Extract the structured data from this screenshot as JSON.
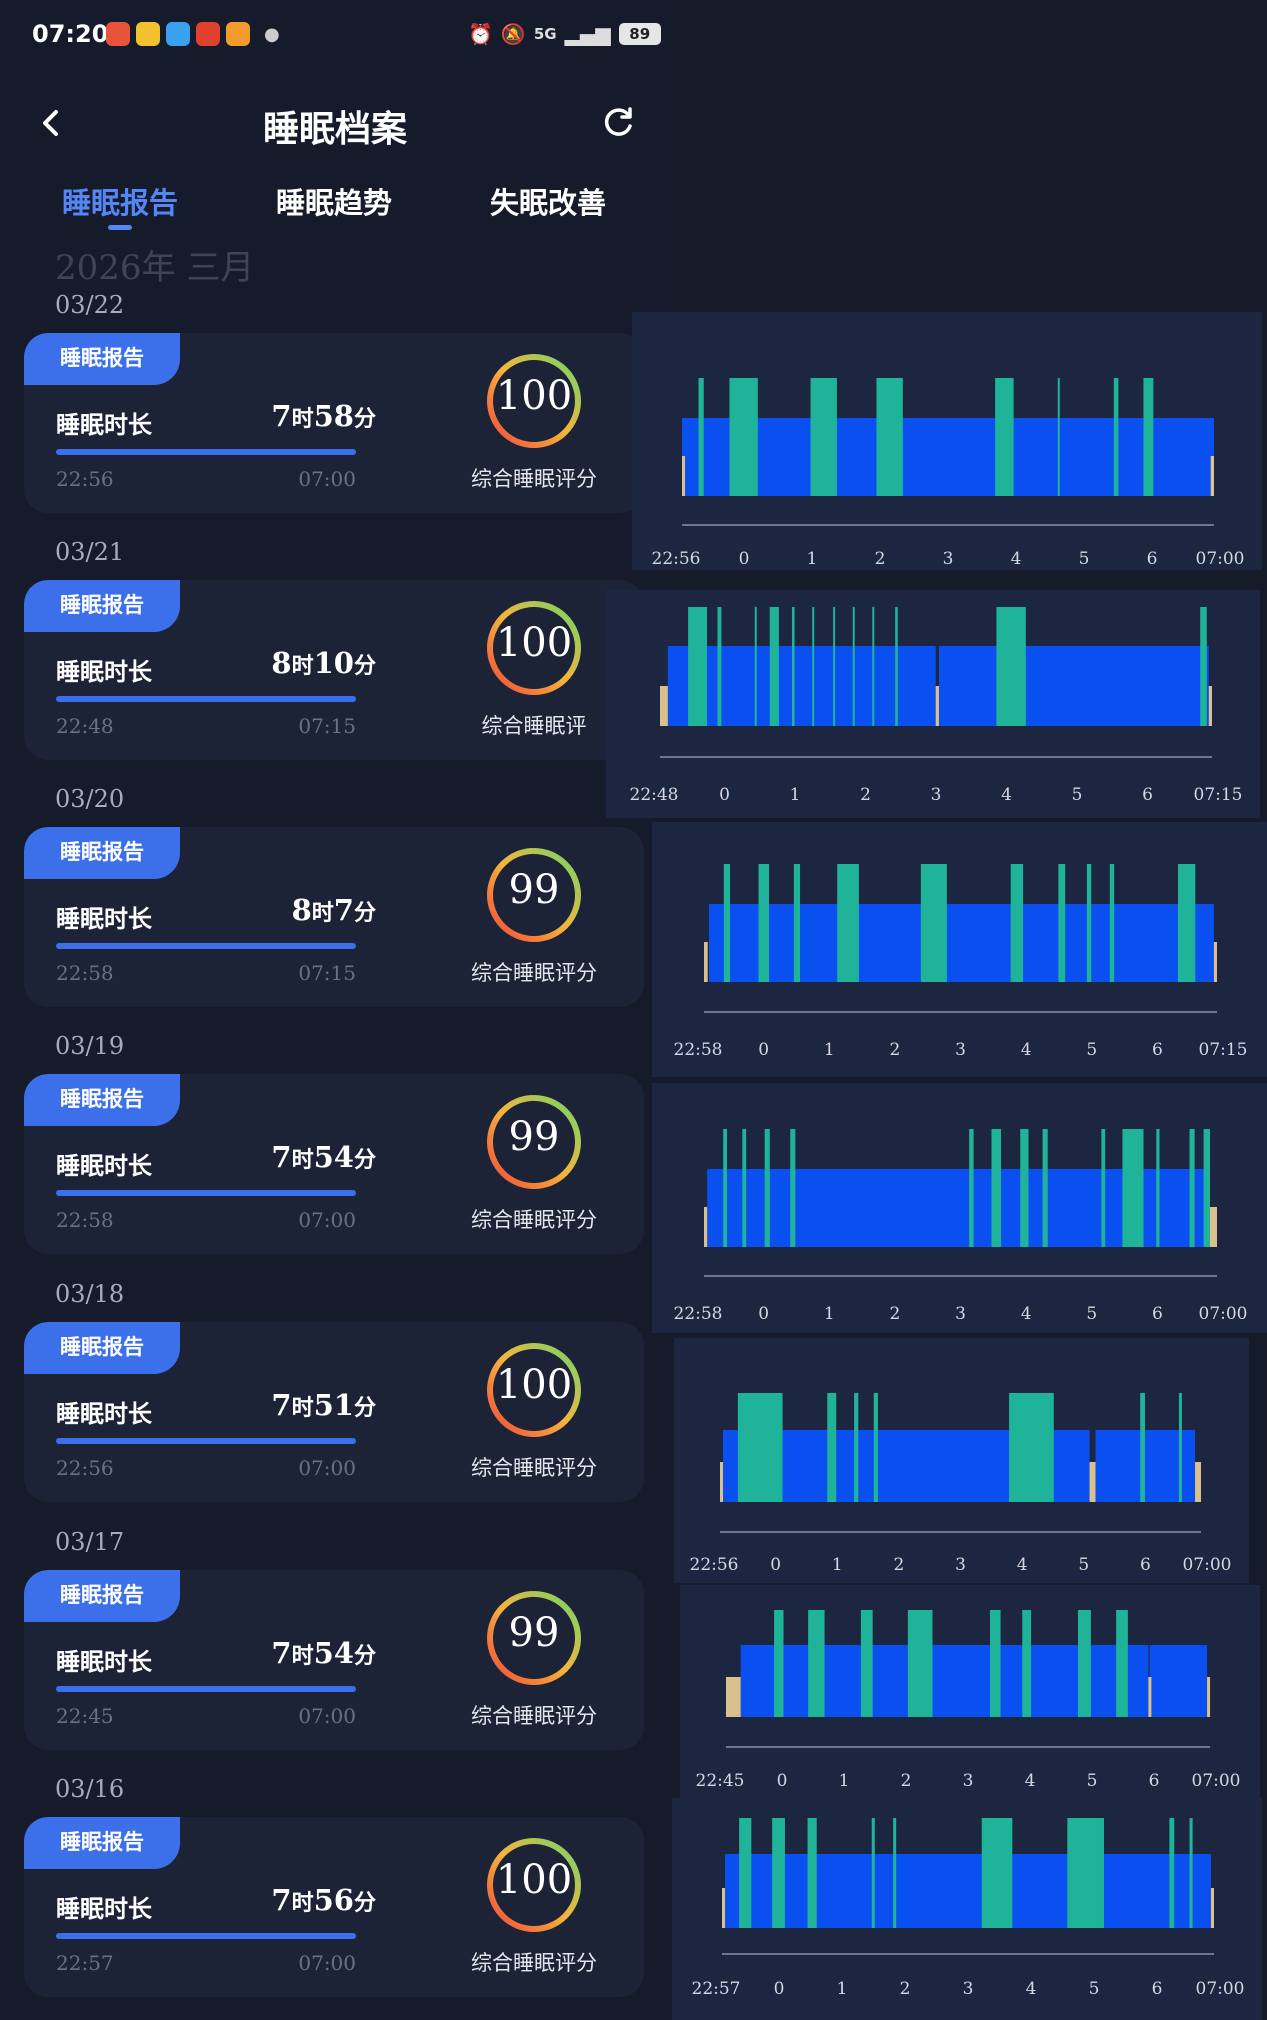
{
  "status_bar": {
    "time": "07:20",
    "signal": "5G",
    "battery": "89",
    "icons": [
      "alarm-icon",
      "mute-icon",
      "signal-icon",
      "battery-icon"
    ]
  },
  "header": {
    "title": "睡眠档案",
    "back_icon": "chevron-left-icon",
    "refresh_icon": "refresh-icon"
  },
  "tabs": [
    {
      "label": "睡眠报告",
      "active": true
    },
    {
      "label": "睡眠趋势",
      "active": false
    },
    {
      "label": "失眠改善",
      "active": false
    }
  ],
  "month_label": "2026年 三月",
  "colors": {
    "accent": "#3c6fea",
    "light_sleep": "#0a50f0",
    "deep_sleep": "#1fb39a",
    "awake": "#d9c08c"
  },
  "records": [
    {
      "date": "03/22",
      "tag": "睡眠报告",
      "duration_label": "睡眠时长",
      "hours": "7",
      "hours_unit": "时",
      "minutes": "58",
      "minutes_unit": "分",
      "start": "22:56",
      "end": "07:00",
      "score": "100",
      "score_label": "综合睡眠评分",
      "axis": [
        "22:56",
        "0",
        "1",
        "2",
        "3",
        "4",
        "5",
        "6",
        "07:00"
      ],
      "chart_data": {
        "type": "bar",
        "x_unit": "hours since sleep start",
        "total_hours": 8.07,
        "light": [
          [
            0.0,
            8.07
          ]
        ],
        "deep": [
          [
            0.25,
            0.33
          ],
          [
            0.72,
            1.15
          ],
          [
            1.95,
            2.35
          ],
          [
            2.95,
            3.35
          ],
          [
            4.75,
            5.03
          ],
          [
            5.7,
            5.73
          ],
          [
            6.55,
            6.62
          ],
          [
            7.0,
            7.15
          ]
        ],
        "awake": [
          [
            0.0,
            0.03
          ],
          [
            8.02,
            8.07
          ]
        ]
      }
    },
    {
      "date": "03/21",
      "tag": "睡眠报告",
      "duration_label": "睡眠时长",
      "hours": "8",
      "hours_unit": "时",
      "minutes": "10",
      "minutes_unit": "分",
      "start": "22:48",
      "end": "07:15",
      "score": "100",
      "score_label": "综合睡眠评",
      "axis": [
        "22:48",
        "0",
        "1",
        "2",
        "3",
        "4",
        "5",
        "6",
        "07:15"
      ],
      "chart_data": {
        "type": "bar",
        "x_unit": "hours since sleep start",
        "total_hours": 8.45,
        "light": [
          [
            0.12,
            4.22
          ],
          [
            4.27,
            8.4
          ]
        ],
        "deep": [
          [
            0.43,
            0.72
          ],
          [
            0.88,
            0.94
          ],
          [
            1.45,
            1.48
          ],
          [
            1.68,
            1.82
          ],
          [
            2.02,
            2.06
          ],
          [
            2.33,
            2.36
          ],
          [
            2.65,
            2.67
          ],
          [
            2.95,
            2.98
          ],
          [
            3.25,
            3.28
          ],
          [
            3.6,
            3.64
          ],
          [
            5.15,
            5.6
          ],
          [
            8.27,
            8.37
          ]
        ],
        "awake": [
          [
            0.0,
            0.12
          ],
          [
            4.22,
            4.27
          ],
          [
            8.4,
            8.45
          ]
        ]
      }
    },
    {
      "date": "03/20",
      "tag": "睡眠报告",
      "duration_label": "睡眠时长",
      "hours": "8",
      "hours_unit": "时",
      "minutes": "7",
      "minutes_unit": "分",
      "start": "22:58",
      "end": "07:15",
      "score": "99",
      "score_label": "综合睡眠评分",
      "axis": [
        "22:58",
        "0",
        "1",
        "2",
        "3",
        "4",
        "5",
        "6",
        "07:15"
      ],
      "chart_data": {
        "type": "bar",
        "x_unit": "hours since sleep start",
        "total_hours": 8.28,
        "light": [
          [
            0.08,
            8.23
          ]
        ],
        "deep": [
          [
            0.32,
            0.42
          ],
          [
            0.88,
            1.05
          ],
          [
            1.45,
            1.55
          ],
          [
            2.15,
            2.5
          ],
          [
            3.5,
            3.92
          ],
          [
            4.95,
            5.15
          ],
          [
            5.72,
            5.83
          ],
          [
            6.18,
            6.25
          ],
          [
            6.55,
            6.62
          ],
          [
            7.65,
            7.93
          ]
        ],
        "awake": [
          [
            0.0,
            0.06
          ],
          [
            8.23,
            8.28
          ]
        ]
      }
    },
    {
      "date": "03/19",
      "tag": "睡眠报告",
      "duration_label": "睡眠时长",
      "hours": "7",
      "hours_unit": "时",
      "minutes": "54",
      "minutes_unit": "分",
      "start": "22:58",
      "end": "07:00",
      "score": "99",
      "score_label": "综合睡眠评分",
      "axis": [
        "22:58",
        "0",
        "1",
        "2",
        "3",
        "4",
        "5",
        "6",
        "07:00"
      ],
      "chart_data": {
        "type": "bar",
        "x_unit": "hours since sleep start",
        "total_hours": 8.03,
        "light": [
          [
            0.05,
            7.92
          ]
        ],
        "deep": [
          [
            0.3,
            0.36
          ],
          [
            0.6,
            0.66
          ],
          [
            0.95,
            1.03
          ],
          [
            1.35,
            1.43
          ],
          [
            4.15,
            4.22
          ],
          [
            4.5,
            4.65
          ],
          [
            4.95,
            5.08
          ],
          [
            5.3,
            5.38
          ],
          [
            6.22,
            6.28
          ],
          [
            6.55,
            6.88
          ],
          [
            7.08,
            7.13
          ],
          [
            7.6,
            7.68
          ],
          [
            7.82,
            7.92
          ]
        ],
        "awake": [
          [
            0.0,
            0.05
          ],
          [
            7.92,
            8.03
          ]
        ]
      }
    },
    {
      "date": "03/18",
      "tag": "睡眠报告",
      "duration_label": "睡眠时长",
      "hours": "7",
      "hours_unit": "时",
      "minutes": "51",
      "minutes_unit": "分",
      "start": "22:56",
      "end": "07:00",
      "score": "100",
      "score_label": "综合睡眠评分",
      "axis": [
        "22:56",
        "0",
        "1",
        "2",
        "3",
        "4",
        "5",
        "6",
        "07:00"
      ],
      "chart_data": {
        "type": "bar",
        "x_unit": "hours since sleep start",
        "total_hours": 8.07,
        "light": [
          [
            0.05,
            6.2
          ],
          [
            6.3,
            7.97
          ]
        ],
        "deep": [
          [
            0.3,
            1.05
          ],
          [
            1.8,
            1.95
          ],
          [
            2.25,
            2.32
          ],
          [
            2.58,
            2.65
          ],
          [
            4.85,
            5.6
          ],
          [
            7.05,
            7.13
          ],
          [
            7.7,
            7.75
          ]
        ],
        "awake": [
          [
            0.0,
            0.04
          ],
          [
            6.2,
            6.3
          ],
          [
            7.97,
            8.07
          ]
        ]
      }
    },
    {
      "date": "03/17",
      "tag": "睡眠报告",
      "duration_label": "睡眠时长",
      "hours": "7",
      "hours_unit": "时",
      "minutes": "54",
      "minutes_unit": "分",
      "start": "22:45",
      "end": "07:00",
      "score": "99",
      "score_label": "综合睡眠评分",
      "axis": [
        "22:45",
        "0",
        "1",
        "2",
        "3",
        "4",
        "5",
        "6",
        "07:00"
      ],
      "chart_data": {
        "type": "bar",
        "x_unit": "hours since sleep start",
        "total_hours": 8.25,
        "light": [
          [
            0.25,
            7.2
          ],
          [
            7.22,
            8.2
          ]
        ],
        "deep": [
          [
            0.82,
            0.98
          ],
          [
            1.4,
            1.68
          ],
          [
            2.3,
            2.5
          ],
          [
            3.1,
            3.52
          ],
          [
            4.5,
            4.68
          ],
          [
            5.05,
            5.2
          ],
          [
            6.0,
            6.22
          ],
          [
            6.65,
            6.85
          ]
        ],
        "awake": [
          [
            0.0,
            0.25
          ],
          [
            7.2,
            7.22
          ],
          [
            8.2,
            8.25
          ]
        ]
      }
    },
    {
      "date": "03/16",
      "tag": "睡眠报告",
      "duration_label": "睡眠时长",
      "hours": "7",
      "hours_unit": "时",
      "minutes": "56",
      "minutes_unit": "分",
      "start": "22:57",
      "end": "07:00",
      "score": "100",
      "score_label": "综合睡眠评分",
      "axis": [
        "22:57",
        "0",
        "1",
        "2",
        "3",
        "4",
        "5",
        "6",
        "07:00"
      ],
      "chart_data": {
        "type": "bar",
        "x_unit": "hours since sleep start",
        "total_hours": 8.05,
        "light": [
          [
            0.05,
            8.0
          ]
        ],
        "deep": [
          [
            0.28,
            0.48
          ],
          [
            0.82,
            1.03
          ],
          [
            1.4,
            1.55
          ],
          [
            2.45,
            2.5
          ],
          [
            2.8,
            2.85
          ],
          [
            4.25,
            4.75
          ],
          [
            5.65,
            6.25
          ],
          [
            7.32,
            7.4
          ],
          [
            7.65,
            7.7
          ]
        ],
        "awake": [
          [
            0.0,
            0.05
          ],
          [
            8.0,
            8.05
          ]
        ]
      }
    }
  ]
}
